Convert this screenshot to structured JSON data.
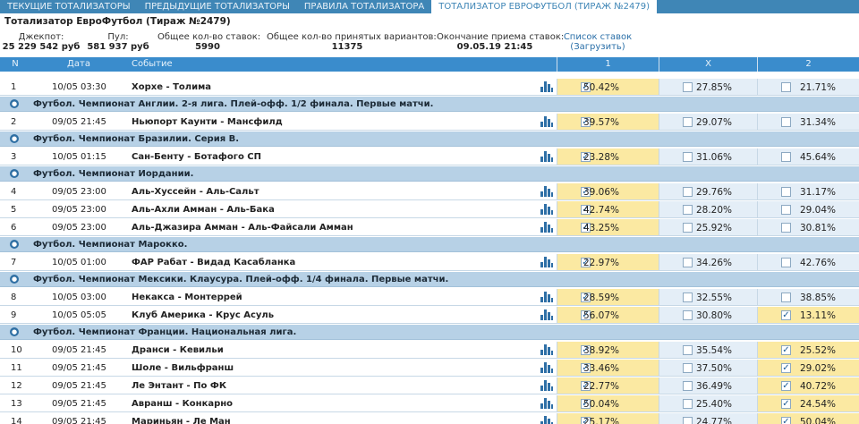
{
  "tabs": [
    {
      "label": "ТЕКУЩИЕ ТОТАЛИЗАТОРЫ"
    },
    {
      "label": "ПРЕДЫДУЩИЕ ТОТАЛИЗАТОРЫ"
    },
    {
      "label": "ПРАВИЛА ТОТАЛИЗАТОРА"
    },
    {
      "label": "ТОТАЛИЗАТОР ЕВРОФУТБОЛ (ТИРАЖ №2479)"
    }
  ],
  "title": "Тотализатор ЕвроФутбол (Тираж №2479)",
  "info": {
    "jackpot_label": "Джекпот:",
    "jackpot_value": "25 229 542 руб",
    "pool_label": "Пул:",
    "pool_value": "581 937 руб",
    "bets_label": "Общее кол-во ставок:",
    "bets_value": "5990",
    "variants_label": "Общее кол-во принятых вариантов:",
    "variants_value": "11375",
    "end_label": "Окончание приема ставок:",
    "end_value": "09.05.19 21:45",
    "list_label": "Список ставок",
    "list_action": "(Загрузить)"
  },
  "table": {
    "headers": {
      "n": "N",
      "date": "Дата",
      "event": "Событие",
      "o1": "1",
      "ox": "X",
      "o2": "2"
    }
  },
  "groups": [
    {
      "title": "Футбол. Чемпионат Англии. 2-я лига. Плей-офф. 1/2 финала. Первые матчи."
    },
    {
      "title": "Футбол. Чемпионат Бразилии. Серия B."
    },
    {
      "title": "Футбол. Чемпионат Иордании."
    },
    {
      "title": "Футбол. Чемпионат Марокко."
    },
    {
      "title": "Футбол. Чемпионат Мексики. Клаусура. Плей-офф. 1/4 финала. Первые матчи."
    },
    {
      "title": "Футбол. Чемпионат Франции. Национальная лига."
    }
  ],
  "rows": [
    {
      "n": "1",
      "date": "10/05 03:30",
      "event": "Хорхе - Толима",
      "p1": "50.42%",
      "px": "27.85%",
      "p2": "21.71%",
      "c1": true,
      "cx": false,
      "c2": false
    },
    {
      "n": "2",
      "date": "09/05 21:45",
      "event": "Ньюпорт Каунти - Мансфилд",
      "p1": "39.57%",
      "px": "29.07%",
      "p2": "31.34%",
      "c1": true,
      "cx": false,
      "c2": false
    },
    {
      "n": "3",
      "date": "10/05 01:15",
      "event": "Сан-Бенту - Ботафого СП",
      "p1": "23.28%",
      "px": "31.06%",
      "p2": "45.64%",
      "c1": true,
      "cx": false,
      "c2": false
    },
    {
      "n": "4",
      "date": "09/05 23:00",
      "event": "Аль-Хуссейн - Аль-Сальт",
      "p1": "39.06%",
      "px": "29.76%",
      "p2": "31.17%",
      "c1": true,
      "cx": false,
      "c2": false
    },
    {
      "n": "5",
      "date": "09/05 23:00",
      "event": "Аль-Ахли Амман - Аль-Бака",
      "p1": "42.74%",
      "px": "28.20%",
      "p2": "29.04%",
      "c1": true,
      "cx": false,
      "c2": false
    },
    {
      "n": "6",
      "date": "09/05 23:00",
      "event": "Аль-Джазира Амман - Аль-Файсали Амман",
      "p1": "43.25%",
      "px": "25.92%",
      "p2": "30.81%",
      "c1": true,
      "cx": false,
      "c2": false
    },
    {
      "n": "7",
      "date": "10/05 01:00",
      "event": "ФАР Рабат - Видад Касабланка",
      "p1": "22.97%",
      "px": "34.26%",
      "p2": "42.76%",
      "c1": true,
      "cx": false,
      "c2": false
    },
    {
      "n": "8",
      "date": "10/05 03:00",
      "event": "Некакса - Монтеррей",
      "p1": "28.59%",
      "px": "32.55%",
      "p2": "38.85%",
      "c1": true,
      "cx": false,
      "c2": false
    },
    {
      "n": "9",
      "date": "10/05 05:05",
      "event": "Клуб Америка - Крус Асуль",
      "p1": "56.07%",
      "px": "30.80%",
      "p2": "13.11%",
      "c1": true,
      "cx": false,
      "c2": true
    },
    {
      "n": "10",
      "date": "09/05 21:45",
      "event": "Дранси - Кевильи",
      "p1": "38.92%",
      "px": "35.54%",
      "p2": "25.52%",
      "c1": true,
      "cx": false,
      "c2": true
    },
    {
      "n": "11",
      "date": "09/05 21:45",
      "event": "Шоле - Вильфранш",
      "p1": "33.46%",
      "px": "37.50%",
      "p2": "29.02%",
      "c1": true,
      "cx": false,
      "c2": true
    },
    {
      "n": "12",
      "date": "09/05 21:45",
      "event": "Ле Энтант - По ФК",
      "p1": "22.77%",
      "px": "36.49%",
      "p2": "40.72%",
      "c1": true,
      "cx": false,
      "c2": true
    },
    {
      "n": "13",
      "date": "09/05 21:45",
      "event": "Авранш - Конкарно",
      "p1": "50.04%",
      "px": "25.40%",
      "p2": "24.54%",
      "c1": true,
      "cx": false,
      "c2": true
    },
    {
      "n": "14",
      "date": "09/05 21:45",
      "event": "Мариньян - Ле Ман",
      "p1": "25.17%",
      "px": "24.77%",
      "p2": "50.04%",
      "c1": true,
      "cx": false,
      "c2": true
    }
  ]
}
